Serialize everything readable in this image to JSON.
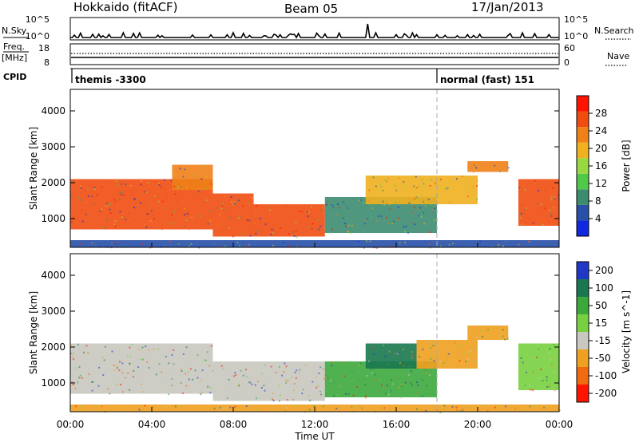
{
  "header": {
    "station": "Hokkaido (fitACF)",
    "beam": "Beam 05",
    "date": "17/Jan/2013"
  },
  "status_panels": {
    "nsky_label": "N.Sky",
    "nsky_ticks": [
      "10^5",
      "10^0"
    ],
    "nsearch_label": "N.Search",
    "freq_label_1": "Freq.",
    "freq_label_2": "[MHz]",
    "freq_ticks": [
      "18",
      "8"
    ],
    "nave_label": "Nave",
    "nave_ticks": [
      "60",
      "0"
    ],
    "cpid_label": "CPID",
    "cpid_segments": [
      {
        "name": "themis",
        "id": "-3300",
        "label": "themis  -3300",
        "start_hour": 0,
        "end_hour": 18
      },
      {
        "name": "normal (fast)",
        "id": "151",
        "label": "normal (fast)  151",
        "start_hour": 18,
        "end_hour": 24
      }
    ]
  },
  "chart_data": [
    {
      "type": "heatmap",
      "panel": "power",
      "xlabel": "",
      "ylabel": "Slant Range [km]",
      "xlim": [
        0,
        24
      ],
      "ylim": [
        200,
        4600
      ],
      "yticks": [
        "1000",
        "2000",
        "3000",
        "4000"
      ],
      "colorbar": {
        "label": "Power [dB]",
        "ticks": [
          "4",
          "8",
          "12",
          "16",
          "20",
          "24",
          "28"
        ],
        "colors": [
          "#1028e0",
          "#2850a8",
          "#3c8c70",
          "#50c848",
          "#98d840",
          "#f0b020",
          "#f08018",
          "#f04c10",
          "#ff1400"
        ]
      },
      "echo_regions": [
        {
          "start_hour": 0.0,
          "end_hour": 7.0,
          "range_low_km": 700,
          "range_high_km": 2100,
          "level": "28"
        },
        {
          "start_hour": 5.0,
          "end_hour": 7.0,
          "range_low_km": 1800,
          "range_high_km": 2500,
          "level": "24"
        },
        {
          "start_hour": 7.0,
          "end_hour": 9.0,
          "range_low_km": 500,
          "range_high_km": 1700,
          "level": "28"
        },
        {
          "start_hour": 9.0,
          "end_hour": 12.5,
          "range_low_km": 500,
          "range_high_km": 1400,
          "level": "28"
        },
        {
          "start_hour": 12.5,
          "end_hour": 18.0,
          "range_low_km": 600,
          "range_high_km": 1600,
          "level": "8"
        },
        {
          "start_hour": 14.5,
          "end_hour": 20.0,
          "range_low_km": 1400,
          "range_high_km": 2200,
          "level": "20"
        },
        {
          "start_hour": 19.5,
          "end_hour": 21.5,
          "range_low_km": 2300,
          "range_high_km": 2600,
          "level": "24"
        },
        {
          "start_hour": 22.0,
          "end_hour": 24.0,
          "range_low_km": 800,
          "range_high_km": 2100,
          "level": "28"
        },
        {
          "start_hour": 0.0,
          "end_hour": 24.0,
          "range_low_km": 200,
          "range_high_km": 400,
          "level": "4"
        }
      ]
    },
    {
      "type": "heatmap",
      "panel": "velocity",
      "xlabel": "Time UT",
      "ylabel": "Slant Range [km]",
      "xlim": [
        0,
        24
      ],
      "ylim": [
        200,
        4600
      ],
      "xticks": [
        "00:00",
        "04:00",
        "08:00",
        "12:00",
        "16:00",
        "20:00",
        "00:00"
      ],
      "yticks": [
        "1000",
        "2000",
        "3000",
        "4000"
      ],
      "colorbar": {
        "label": "Velocity [m s^-1]",
        "ticks": [
          "200",
          "100",
          "50",
          "15",
          "-15",
          "-50",
          "-100",
          "-200"
        ],
        "colors": [
          "#2038c8",
          "#1a7850",
          "#3ca83c",
          "#78d040",
          "#c8c8c0",
          "#f0a020",
          "#f06a10",
          "#ff1400"
        ]
      },
      "echo_regions": [
        {
          "start_hour": 0.0,
          "end_hour": 7.0,
          "range_low_km": 700,
          "range_high_km": 2100,
          "level": "-15"
        },
        {
          "start_hour": 7.0,
          "end_hour": 12.5,
          "range_low_km": 500,
          "range_high_km": 1600,
          "level": "-15"
        },
        {
          "start_hour": 12.5,
          "end_hour": 18.0,
          "range_low_km": 600,
          "range_high_km": 1600,
          "level": "50"
        },
        {
          "start_hour": 14.5,
          "end_hour": 17.0,
          "range_low_km": 1400,
          "range_high_km": 2100,
          "level": "100"
        },
        {
          "start_hour": 17.0,
          "end_hour": 20.0,
          "range_low_km": 1400,
          "range_high_km": 2200,
          "level": "-50"
        },
        {
          "start_hour": 19.5,
          "end_hour": 21.5,
          "range_low_km": 2200,
          "range_high_km": 2600,
          "level": "-50"
        },
        {
          "start_hour": 22.0,
          "end_hour": 24.0,
          "range_low_km": 800,
          "range_high_km": 2100,
          "level": "15"
        },
        {
          "start_hour": 0.0,
          "end_hour": 24.0,
          "range_low_km": 200,
          "range_high_km": 400,
          "level": "-50"
        }
      ]
    }
  ]
}
